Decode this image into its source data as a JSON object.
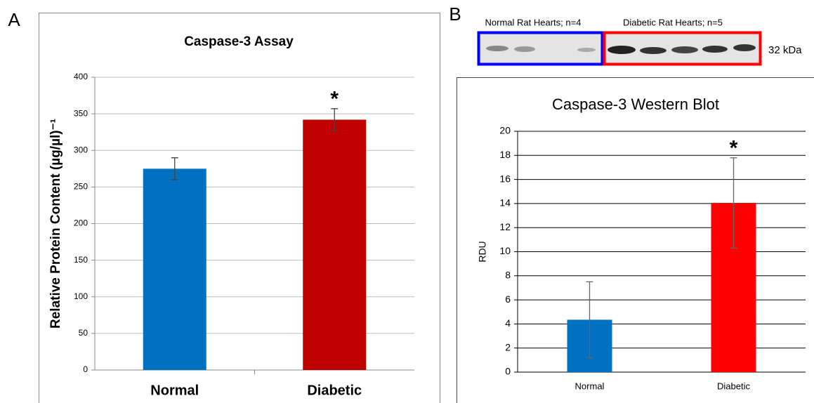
{
  "panel_labels": [
    "A",
    "B"
  ],
  "blot": {
    "groups": [
      "Normal Rat Hearts; n=4",
      "Diabetic Rat Hearts; n=5"
    ],
    "size_label": "32 kDa"
  },
  "chart_data": [
    {
      "type": "bar",
      "title": "Caspase-3 Assay",
      "y_label": "Relative Protein Content (µg/µl)⁻¹",
      "categories": [
        "Normal",
        "Diabetic"
      ],
      "values": [
        275,
        342
      ],
      "errors": [
        15,
        15
      ],
      "colors": [
        "#0070c0",
        "#c00000"
      ],
      "annotations": [
        null,
        "*"
      ],
      "ylim": [
        0,
        400
      ],
      "yticks": [
        0,
        50,
        100,
        150,
        200,
        250,
        300,
        350,
        400
      ],
      "grid": true
    },
    {
      "type": "bar",
      "title": "Caspase-3 Western Blot",
      "y_label": "RDU",
      "categories": [
        "Normal",
        "Diabetic"
      ],
      "values": [
        4.35,
        14.05
      ],
      "errors": [
        3.15,
        3.75
      ],
      "colors": [
        "#0070c0",
        "#ff0000"
      ],
      "annotations": [
        null,
        "*"
      ],
      "ylim": [
        0,
        20
      ],
      "yticks": [
        0,
        2,
        4,
        6,
        8,
        10,
        12,
        14,
        16,
        18,
        20
      ],
      "grid": true
    }
  ]
}
